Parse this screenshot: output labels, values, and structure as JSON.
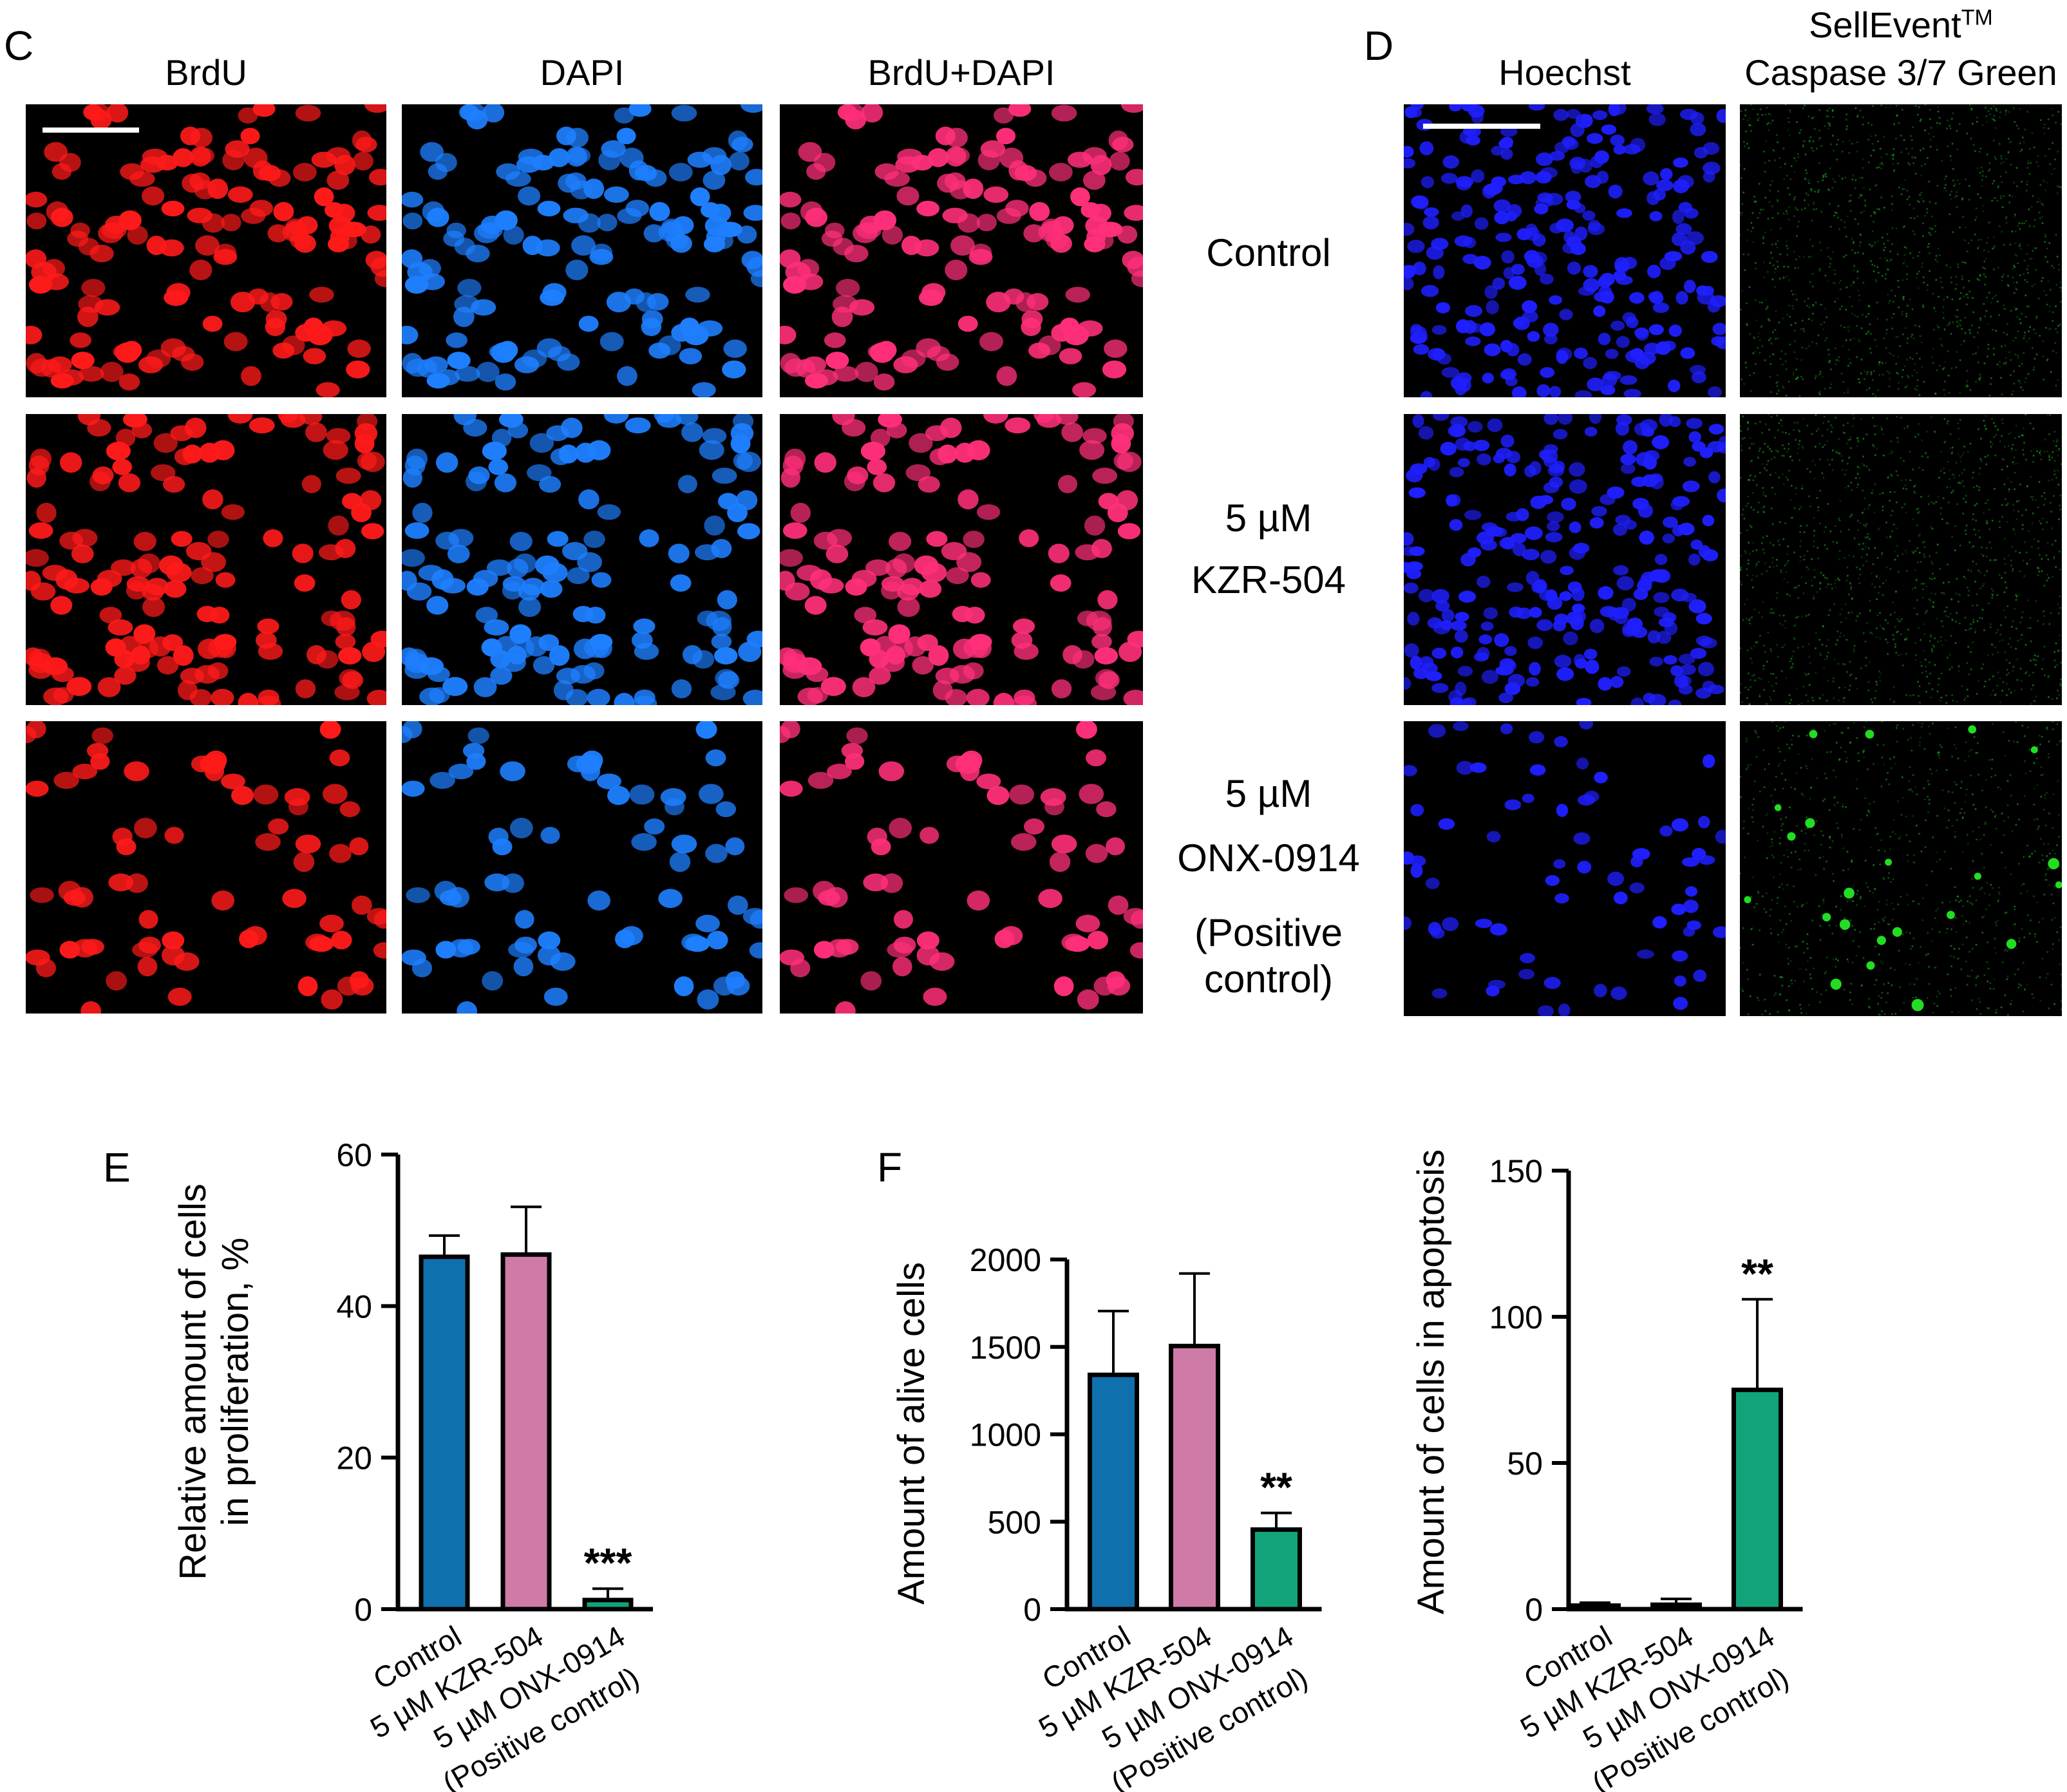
{
  "panels": {
    "c": {
      "letter": "C",
      "columns": [
        "BrdU",
        "DAPI",
        "BrdU+DAPI"
      ],
      "colors": {
        "brdu": "#ff1a1a",
        "dapi": "#1e7fff",
        "merge": "#ff2f7a"
      }
    },
    "d": {
      "letter": "D",
      "columns": [
        "Hoechst",
        "SellEvent",
        "TM",
        "Caspase 3/7 Green"
      ],
      "colors": {
        "hoechst": "#1f1fff",
        "caspase": "#22dd22"
      }
    },
    "e": {
      "letter": "E"
    },
    "f": {
      "letter": "F"
    }
  },
  "row_labels": {
    "control": "Control",
    "kzr_dose": "5 µM",
    "kzr_name": "KZR-504",
    "onx_dose": "5 µM",
    "onx_name": "ONX-0914",
    "onx_note_1": "(Positive",
    "onx_note_2": "control)"
  },
  "chart_data": [
    {
      "type": "bar",
      "panel": "E",
      "categories": [
        "Control",
        "5 µM KZR-504",
        "5 µM ONX-0914\n(Positive control)"
      ],
      "values": [
        46.5,
        46.8,
        1.2
      ],
      "errors": [
        2.8,
        6.3,
        1.5
      ],
      "colors": [
        "#0f70ad",
        "#cf7ba7",
        "#12a37b"
      ],
      "significance": [
        "",
        "",
        "***"
      ],
      "ylabel": "Relative amount of cells\nin proliferation, %",
      "ylim": [
        0,
        60
      ],
      "yticks": [
        0,
        20,
        40,
        60
      ]
    },
    {
      "type": "bar",
      "panel": "F",
      "categories": [
        "Control",
        "5 µM KZR-504",
        "5 µM ONX-0914\n(Positive control)"
      ],
      "values": [
        1340,
        1505,
        455
      ],
      "errors": [
        365,
        415,
        95
      ],
      "colors": [
        "#0f70ad",
        "#cf7ba7",
        "#12a37b"
      ],
      "significance": [
        "",
        "",
        "**"
      ],
      "ylabel": "Amount of alive cells",
      "ylim": [
        0,
        2000
      ],
      "yticks": [
        0,
        500,
        1000,
        1500,
        2000
      ]
    },
    {
      "type": "bar",
      "panel": "F-right",
      "categories": [
        "Control",
        "5 µM KZR-504",
        "5 µM ONX-0914\n(Positive control)"
      ],
      "values": [
        1.2,
        1.5,
        75
      ],
      "errors": [
        1.0,
        2.0,
        31
      ],
      "colors": [
        "#0f70ad",
        "#cf7ba7",
        "#12a37b"
      ],
      "significance": [
        "",
        "",
        "**"
      ],
      "ylabel": "Amount of cells in apoptosis",
      "ylim": [
        0,
        150
      ],
      "yticks": [
        0,
        50,
        100,
        150
      ]
    }
  ]
}
